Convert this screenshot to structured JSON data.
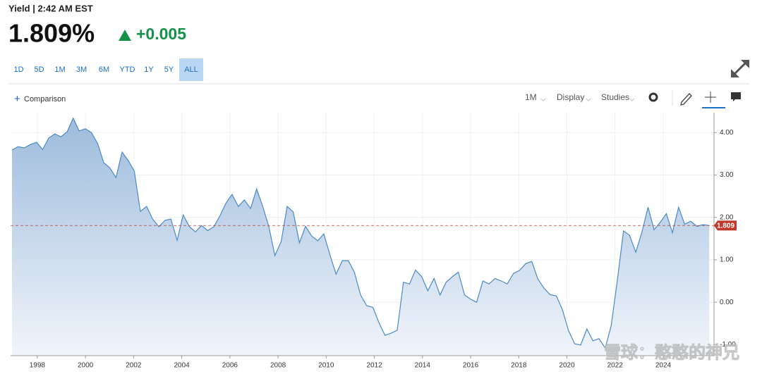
{
  "header": {
    "title": "Yield | 2:42 AM EST",
    "price": "1.809%",
    "change": "+0.005"
  },
  "ranges": [
    "1D",
    "5D",
    "1M",
    "3M",
    "6M",
    "YTD",
    "1Y",
    "5Y",
    "ALL"
  ],
  "active_range": "ALL",
  "toolbar": {
    "comparison": "Comparison",
    "interval": "1M",
    "display": "Display",
    "studies": "Studies"
  },
  "chart_data": {
    "type": "area",
    "color": "#4a8ac4",
    "grid": true,
    "x": [
      1996.95,
      1997.2,
      1997.46,
      1997.71,
      1997.97,
      1998.22,
      1998.47,
      1998.73,
      1998.98,
      1999.24,
      1999.49,
      1999.74,
      2000.0,
      2000.25,
      2000.51,
      2000.76,
      2001.01,
      2001.27,
      2001.52,
      2001.78,
      2002.03,
      2002.28,
      2002.54,
      2002.79,
      2003.05,
      2003.3,
      2003.55,
      2003.81,
      2004.06,
      2004.32,
      2004.57,
      2004.82,
      2005.08,
      2005.33,
      2005.59,
      2005.84,
      2006.09,
      2006.35,
      2006.6,
      2006.86,
      2007.11,
      2007.36,
      2007.62,
      2007.87,
      2008.13,
      2008.38,
      2008.63,
      2008.89,
      2009.14,
      2009.4,
      2009.65,
      2009.9,
      2010.16,
      2010.41,
      2010.67,
      2010.92,
      2011.17,
      2011.43,
      2011.68,
      2011.94,
      2012.19,
      2012.44,
      2012.7,
      2012.95,
      2013.21,
      2013.46,
      2013.71,
      2013.97,
      2014.22,
      2014.48,
      2014.73,
      2014.98,
      2015.24,
      2015.49,
      2015.75,
      2016.0,
      2016.25,
      2016.51,
      2016.76,
      2017.02,
      2017.27,
      2017.52,
      2017.78,
      2018.03,
      2018.29,
      2018.54,
      2018.79,
      2019.05,
      2019.3,
      2019.56,
      2019.81,
      2020.06,
      2020.32,
      2020.57,
      2020.83,
      2021.08,
      2021.33,
      2021.59,
      2021.84,
      2022.1,
      2022.35,
      2022.6,
      2022.86,
      2023.11,
      2023.37,
      2023.62,
      2023.87,
      2024.13,
      2024.38,
      2024.64,
      2024.89,
      2025.14,
      2025.4,
      2025.65,
      2025.91
    ],
    "values": [
      3.59,
      3.67,
      3.64,
      3.72,
      3.77,
      3.6,
      3.87,
      3.97,
      3.9,
      4.02,
      4.34,
      4.04,
      4.09,
      4.0,
      3.74,
      3.29,
      3.17,
      2.94,
      3.54,
      3.34,
      3.09,
      2.14,
      2.26,
      1.96,
      1.78,
      1.93,
      1.96,
      1.46,
      2.06,
      1.78,
      1.66,
      1.81,
      1.69,
      1.78,
      2.04,
      2.34,
      2.54,
      2.26,
      2.41,
      2.21,
      2.67,
      2.27,
      1.78,
      1.1,
      1.43,
      2.26,
      2.13,
      1.4,
      1.79,
      1.56,
      1.45,
      1.61,
      1.11,
      0.66,
      0.98,
      0.98,
      0.71,
      0.17,
      -0.08,
      -0.12,
      -0.48,
      -0.78,
      -0.73,
      -0.66,
      0.47,
      0.43,
      0.76,
      0.6,
      0.27,
      0.56,
      0.17,
      0.47,
      0.6,
      0.71,
      0.17,
      0.07,
      0.0,
      0.5,
      0.43,
      0.56,
      0.5,
      0.43,
      0.68,
      0.75,
      0.91,
      0.96,
      0.55,
      0.33,
      0.18,
      0.15,
      -0.17,
      -0.66,
      -0.98,
      -1.01,
      -0.63,
      -0.91,
      -0.86,
      -1.08,
      -0.55,
      0.55,
      1.68,
      1.58,
      1.18,
      1.64,
      2.24,
      1.71,
      1.88,
      2.09,
      1.64,
      2.24,
      1.84,
      1.91,
      1.79,
      1.83,
      1.81
    ],
    "xlim": [
      1996.89,
      2026.11
    ],
    "ylim": [
      -1.26,
      4.47
    ],
    "xticks": [
      1998,
      2000,
      2002,
      2004,
      2006,
      2008,
      2010,
      2012,
      2014,
      2016,
      2018,
      2020,
      2022,
      2024
    ],
    "yticks": [
      {
        "value": -1,
        "label": "-1.00"
      },
      {
        "value": 0,
        "label": "0.00"
      },
      {
        "value": 1,
        "label": "1.00"
      },
      {
        "value": 2,
        "label": "2.00"
      },
      {
        "value": 3,
        "label": "3.00"
      },
      {
        "value": 4,
        "label": "4.00"
      }
    ],
    "last_value": 1.809,
    "last_color": "#c0392b"
  },
  "watermark": "雪球：憨憨的神兄"
}
